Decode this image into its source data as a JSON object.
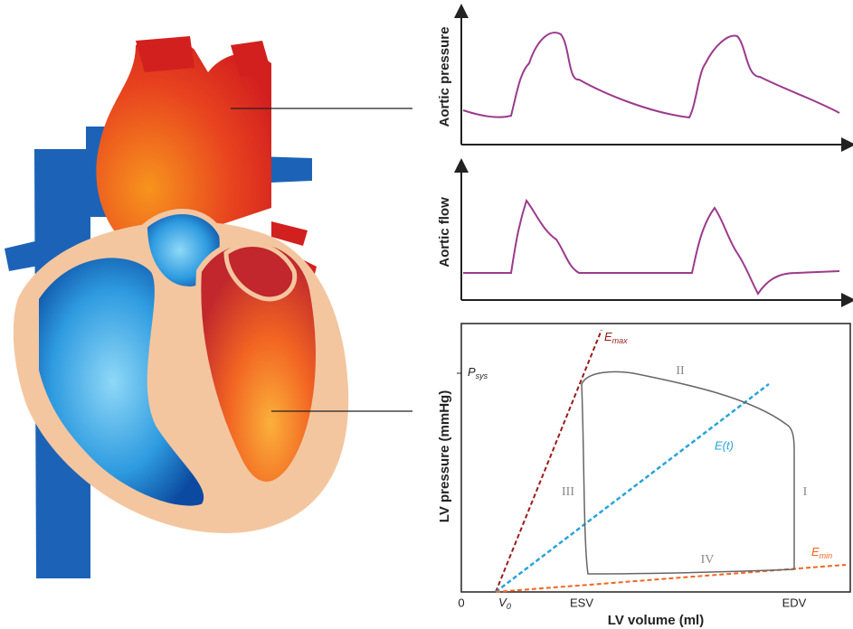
{
  "aortic_pressure_panel": {
    "ylabel": "Aortic pressure"
  },
  "aortic_flow_panel": {
    "ylabel": "Aortic flow"
  },
  "pv_loop_panel": {
    "ylabel": "LV pressure (mmHg)",
    "xlabel": "LV volume (ml)",
    "psys": {
      "base": "P",
      "sub": "sys"
    },
    "emax": {
      "base": "E",
      "sub": "max"
    },
    "et": "E(t)",
    "emin": {
      "base": "E",
      "sub": "min"
    },
    "phases": [
      "I",
      "II",
      "III",
      "IV"
    ],
    "x_ticks": {
      "zero": "0",
      "v0": {
        "base": "V",
        "sub": "0"
      },
      "esv": "ESV",
      "edv": "EDV"
    }
  }
}
